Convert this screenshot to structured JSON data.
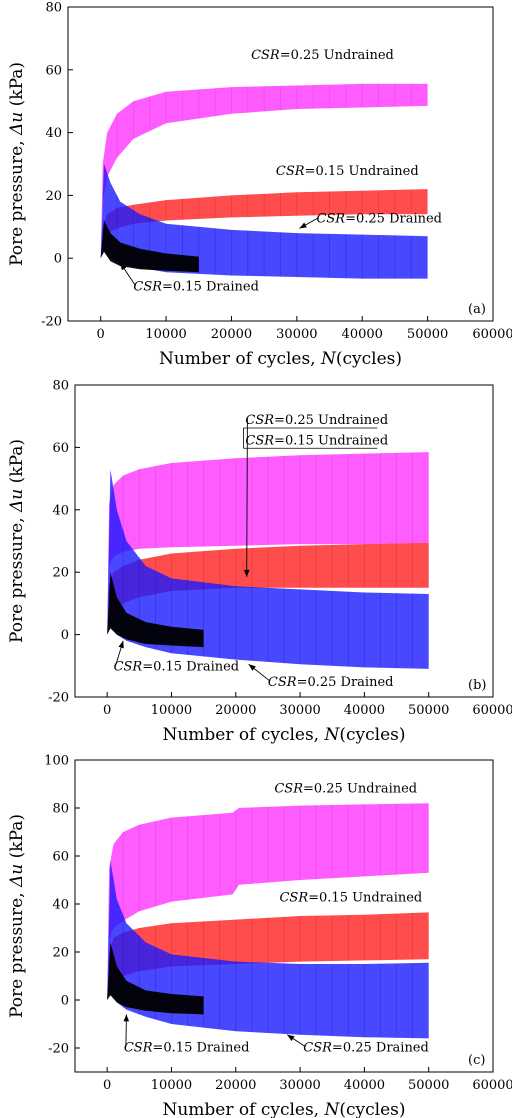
{
  "chart_data": [
    {
      "type": "area",
      "panel_label": "(a)",
      "xlabel": {
        "pre": "Number of cycles, ",
        "var": "N",
        "post": "(cycles)"
      },
      "ylabel": {
        "pre": "Pore pressure, ",
        "var": "Δu",
        "post": " (kPa)"
      },
      "xlim": [
        -5000,
        60000
      ],
      "ylim": [
        -20,
        80
      ],
      "xticks": [
        0,
        10000,
        20000,
        30000,
        40000,
        50000,
        60000
      ],
      "yticks": [
        -20,
        0,
        20,
        40,
        60,
        80
      ],
      "series": [
        {
          "name": "CSR=0.25 Undrained",
          "color": "#ff33ff",
          "x": [
            0,
            300,
            1000,
            2500,
            5000,
            10000,
            20000,
            30000,
            40000,
            50000
          ],
          "upper": [
            0,
            30,
            40,
            46,
            50,
            53,
            54.5,
            55,
            55.5,
            55.5
          ],
          "lower": [
            0,
            18,
            26,
            32,
            38,
            43,
            46,
            47.5,
            48,
            48.5
          ]
        },
        {
          "name": "CSR=0.15 Undrained",
          "color": "#ff2020",
          "x": [
            0,
            300,
            1000,
            2500,
            5000,
            10000,
            20000,
            30000,
            40000,
            50000
          ],
          "upper": [
            0,
            10,
            14,
            16,
            17,
            18.5,
            20,
            21,
            21.5,
            22
          ],
          "lower": [
            0,
            5,
            8,
            9.5,
            11,
            12,
            13,
            13.5,
            14,
            14
          ]
        },
        {
          "name": "CSR=0.25 Drained",
          "color": "#1a1aff",
          "x": [
            0,
            500,
            1500,
            3000,
            6000,
            10000,
            20000,
            30000,
            40000,
            50000
          ],
          "upper": [
            0,
            30,
            24,
            18,
            14,
            11,
            9,
            8,
            7.5,
            7
          ],
          "lower": [
            0,
            3,
            0,
            -2,
            -3,
            -4.5,
            -5.5,
            -6,
            -6.5,
            -6.5
          ]
        },
        {
          "name": "CSR=0.15 Drained",
          "color": "#000000",
          "x": [
            0,
            500,
            1500,
            3000,
            6000,
            10000,
            15000
          ],
          "upper": [
            0,
            12,
            8,
            5,
            3,
            1.5,
            0.5
          ],
          "lower": [
            0,
            2,
            -1,
            -2.5,
            -3.5,
            -4,
            -4.5
          ]
        }
      ],
      "annotations": [
        {
          "var": "CSR",
          "text": "=0.25 Undrained",
          "tx": 23000,
          "ty": 63.5,
          "arrow": null
        },
        {
          "var": "CSR",
          "text": "=0.15 Undrained",
          "tx": 26800,
          "ty": 26.5,
          "arrow": null
        },
        {
          "var": "CSR",
          "text": "=0.25 Drained",
          "tx": 33000,
          "ty": 11.3,
          "arrow": [
            30400,
            9.5
          ]
        },
        {
          "var": "CSR",
          "text": "=0.15 Drained",
          "tx": 5000,
          "ty": -10.3,
          "arrow": [
            3000,
            -1.5
          ]
        }
      ]
    },
    {
      "type": "area",
      "panel_label": "(b)",
      "xlabel": {
        "pre": "Number of cycles, ",
        "var": "N",
        "post": "(cycles)"
      },
      "ylabel": {
        "pre": "Pore pressure, ",
        "var": "Δu",
        "post": " (kPa)"
      },
      "xlim": [
        -5000,
        60000
      ],
      "ylim": [
        -20,
        80
      ],
      "xticks": [
        0,
        10000,
        20000,
        30000,
        40000,
        50000,
        60000
      ],
      "yticks": [
        -20,
        0,
        20,
        40,
        60,
        80
      ],
      "series": [
        {
          "name": "CSR=0.25 Undrained",
          "color": "#ff33ff",
          "x": [
            0,
            300,
            1000,
            2500,
            5000,
            10000,
            20000,
            30000,
            40000,
            50000
          ],
          "upper": [
            0,
            42,
            48,
            51,
            53,
            55,
            56.5,
            57.5,
            58,
            58.5
          ],
          "lower": [
            0,
            22,
            25,
            26.5,
            27.5,
            28,
            28.5,
            29,
            29,
            29.5
          ]
        },
        {
          "name": "CSR=0.15 Undrained",
          "color": "#ff2020",
          "x": [
            0,
            300,
            1000,
            2500,
            5000,
            10000,
            20000,
            30000,
            40000,
            50000
          ],
          "upper": [
            0,
            16,
            20,
            22,
            24,
            26,
            27.5,
            28.5,
            29,
            29.5
          ],
          "lower": [
            0,
            6,
            8,
            10,
            12,
            14,
            15,
            15,
            15,
            15
          ]
        },
        {
          "name": "CSR=0.25 Drained",
          "color": "#1a1aff",
          "x": [
            0,
            500,
            1500,
            3000,
            6000,
            10000,
            20000,
            30000,
            40000,
            50000
          ],
          "upper": [
            0,
            53,
            40,
            30,
            22,
            18,
            15.5,
            14.5,
            13.5,
            13
          ],
          "lower": [
            0,
            3,
            0,
            -2,
            -4,
            -6,
            -8,
            -9.5,
            -10.5,
            -11
          ]
        },
        {
          "name": "CSR=0.15 Drained",
          "color": "#000000",
          "x": [
            0,
            500,
            1500,
            3000,
            6000,
            10000,
            15000
          ],
          "upper": [
            0,
            20,
            12,
            7,
            4,
            2.5,
            1.5
          ],
          "lower": [
            0,
            2,
            0,
            -1.5,
            -3,
            -3.5,
            -4
          ]
        }
      ],
      "annotations": [
        {
          "var": "CSR",
          "text": "=0.25 Undrained",
          "tx": 21500,
          "ty": 67.5,
          "arrow": [
            21700,
            18.5
          ]
        },
        {
          "var": "CSR",
          "text": "=0.15 Undrained",
          "tx": 21500,
          "ty": 61.0,
          "arrow": null
        },
        {
          "var": "CSR",
          "text": "=0.25 Drained",
          "tx": 25000,
          "ty": -16.5,
          "arrow": [
            22000,
            -9.5
          ]
        },
        {
          "var": "CSR",
          "text": "=0.15 Drained",
          "tx": 1000,
          "ty": -11.5,
          "arrow": [
            2500,
            -2
          ]
        }
      ]
    },
    {
      "type": "area",
      "panel_label": "(c)",
      "xlabel": {
        "pre": "Number of cycles, ",
        "var": "N",
        "post": "(cycles)"
      },
      "ylabel": {
        "pre": "Pore pressure, ",
        "var": "Δu",
        "post": " (kPa)"
      },
      "xlim": [
        -5000,
        60000
      ],
      "ylim": [
        -30,
        100
      ],
      "xticks": [
        0,
        10000,
        20000,
        30000,
        40000,
        50000,
        60000
      ],
      "yticks": [
        -20,
        0,
        20,
        40,
        60,
        80,
        100
      ],
      "series": [
        {
          "name": "CSR=0.25 Undrained",
          "color": "#ff33ff",
          "x": [
            0,
            300,
            1000,
            2500,
            5000,
            10000,
            19500,
            20500,
            30000,
            40000,
            50000
          ],
          "upper": [
            0,
            55,
            65,
            70,
            73,
            76,
            78,
            80,
            81,
            81.5,
            82
          ],
          "lower": [
            0,
            25,
            30,
            33,
            37,
            41,
            44,
            48,
            50,
            51.5,
            53
          ]
        },
        {
          "name": "CSR=0.15 Undrained",
          "color": "#ff2020",
          "x": [
            0,
            300,
            1000,
            2500,
            5000,
            10000,
            20000,
            30000,
            40000,
            50000
          ],
          "upper": [
            0,
            20,
            26,
            28,
            30,
            32,
            33.5,
            35,
            35.5,
            36.5
          ],
          "lower": [
            0,
            6,
            8,
            10,
            12,
            14,
            15,
            16,
            16.5,
            17
          ]
        },
        {
          "name": "CSR=0.25 Drained",
          "color": "#1a1aff",
          "x": [
            0,
            500,
            1500,
            3000,
            6000,
            10000,
            20000,
            30000,
            40000,
            50000
          ],
          "upper": [
            0,
            58,
            42,
            32,
            24,
            19,
            16,
            15,
            15,
            15.5
          ],
          "lower": [
            0,
            3,
            -1,
            -4,
            -7,
            -10,
            -13,
            -14.5,
            -15.5,
            -16
          ]
        },
        {
          "name": "CSR=0.15 Drained",
          "color": "#000000",
          "x": [
            0,
            500,
            1500,
            3000,
            6000,
            10000,
            15000
          ],
          "upper": [
            0,
            24,
            14,
            8,
            4,
            2.5,
            1.5
          ],
          "lower": [
            0,
            2,
            -1,
            -3,
            -4.5,
            -5.5,
            -6
          ]
        }
      ],
      "annotations": [
        {
          "var": "CSR",
          "text": "=0.25 Undrained",
          "tx": 26000,
          "ty": 86.5,
          "arrow": null
        },
        {
          "var": "CSR",
          "text": "=0.15 Undrained",
          "tx": 26800,
          "ty": 41.0,
          "arrow": null
        },
        {
          "var": "CSR",
          "text": "=0.25 Drained",
          "tx": 30500,
          "ty": -21.5,
          "arrow": [
            28000,
            -14.5
          ]
        },
        {
          "var": "CSR",
          "text": "=0.15 Drained",
          "tx": 2600,
          "ty": -21.5,
          "arrow": [
            3000,
            -6
          ]
        }
      ]
    }
  ]
}
